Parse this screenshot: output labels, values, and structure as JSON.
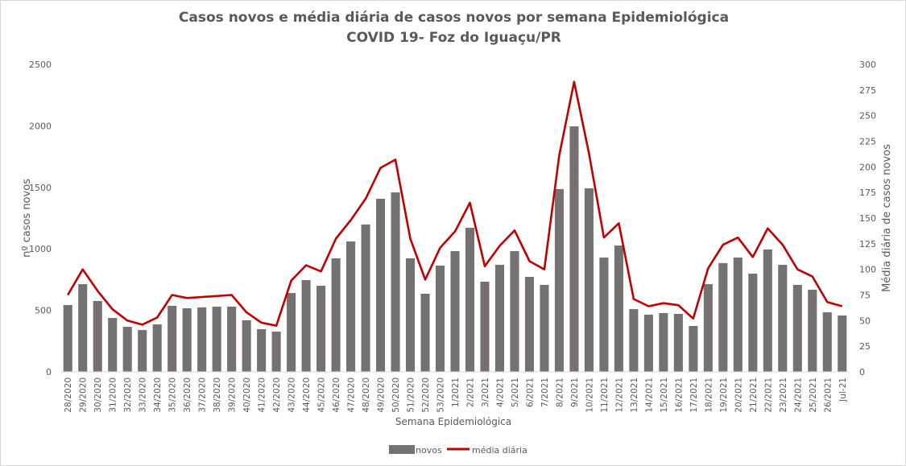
{
  "chart_data": {
    "type": "bar+line",
    "title": "Casos novos  e média diária de casos novos por semana Epidemiológica",
    "subtitle": "COVID 19- Foz do Iguaçu/PR",
    "xlabel": "Semana Epidemiológica",
    "ylabel_left": "nº casos novos",
    "ylabel_right": "Média diária de casos novos",
    "ylim_left": [
      0,
      2500
    ],
    "ylim_right": [
      0,
      300
    ],
    "yticks_left": [
      0,
      500,
      1000,
      1500,
      2000,
      2500
    ],
    "yticks_right": [
      0,
      25,
      50,
      75,
      100,
      125,
      150,
      175,
      200,
      225,
      250,
      275,
      300
    ],
    "grid": false,
    "legend_position": "bottom",
    "categories": [
      "28/2020",
      "29/2020",
      "30/2020",
      "31/2020",
      "32/2020",
      "33/2020",
      "34/2020",
      "35/2020",
      "36/2020",
      "37/2020",
      "38/2020",
      "39/2020",
      "40/2020",
      "41/2020",
      "42/2020",
      "43/2020",
      "44/2020",
      "45/2020",
      "46/2020",
      "47/2020",
      "48/2020",
      "49/2020",
      "50/2020",
      "51/2020",
      "52/2020",
      "53/2020",
      "1/2021",
      "2/2021",
      "3/2021",
      "4/2021",
      "5/2021",
      "6/2021",
      "7/2021",
      "8/2021",
      "9/2021",
      "10/2021",
      "11/2021",
      "12/2021",
      "13/2021",
      "14/2021",
      "15/2021",
      "16/2021",
      "17/2021",
      "18/2021",
      "19/2021",
      "20/2021",
      "21/2021",
      "22/2021",
      "23/2021",
      "24/2021",
      "25/2021",
      "26/2021",
      "Jul-21"
    ],
    "series": [
      {
        "name": "novos",
        "type": "bar",
        "axis": "left",
        "color": "#767171",
        "values": [
          543,
          713,
          576,
          438,
          366,
          340,
          386,
          537,
          517,
          524,
          530,
          530,
          419,
          347,
          327,
          641,
          746,
          700,
          923,
          1060,
          1198,
          1407,
          1459,
          923,
          635,
          864,
          982,
          1171,
          733,
          870,
          982,
          772,
          707,
          1486,
          1996,
          1492,
          929,
          1027,
          510,
          465,
          478,
          471,
          373,
          713,
          884,
          929,
          798,
          995,
          870,
          707,
          668,
          484,
          458
        ]
      },
      {
        "name": "média diária",
        "type": "line",
        "axis": "right",
        "color": "#c00000",
        "values": [
          75,
          100,
          79,
          61,
          50,
          46,
          53,
          75,
          72,
          73,
          74,
          75,
          58,
          48,
          45,
          89,
          104,
          98,
          130,
          148,
          169,
          199,
          207,
          130,
          90,
          121,
          137,
          165,
          103,
          123,
          138,
          108,
          100,
          211,
          283,
          213,
          131,
          145,
          71,
          64,
          67,
          65,
          52,
          101,
          124,
          131,
          112,
          140,
          124,
          100,
          93,
          68,
          64
        ]
      }
    ]
  }
}
